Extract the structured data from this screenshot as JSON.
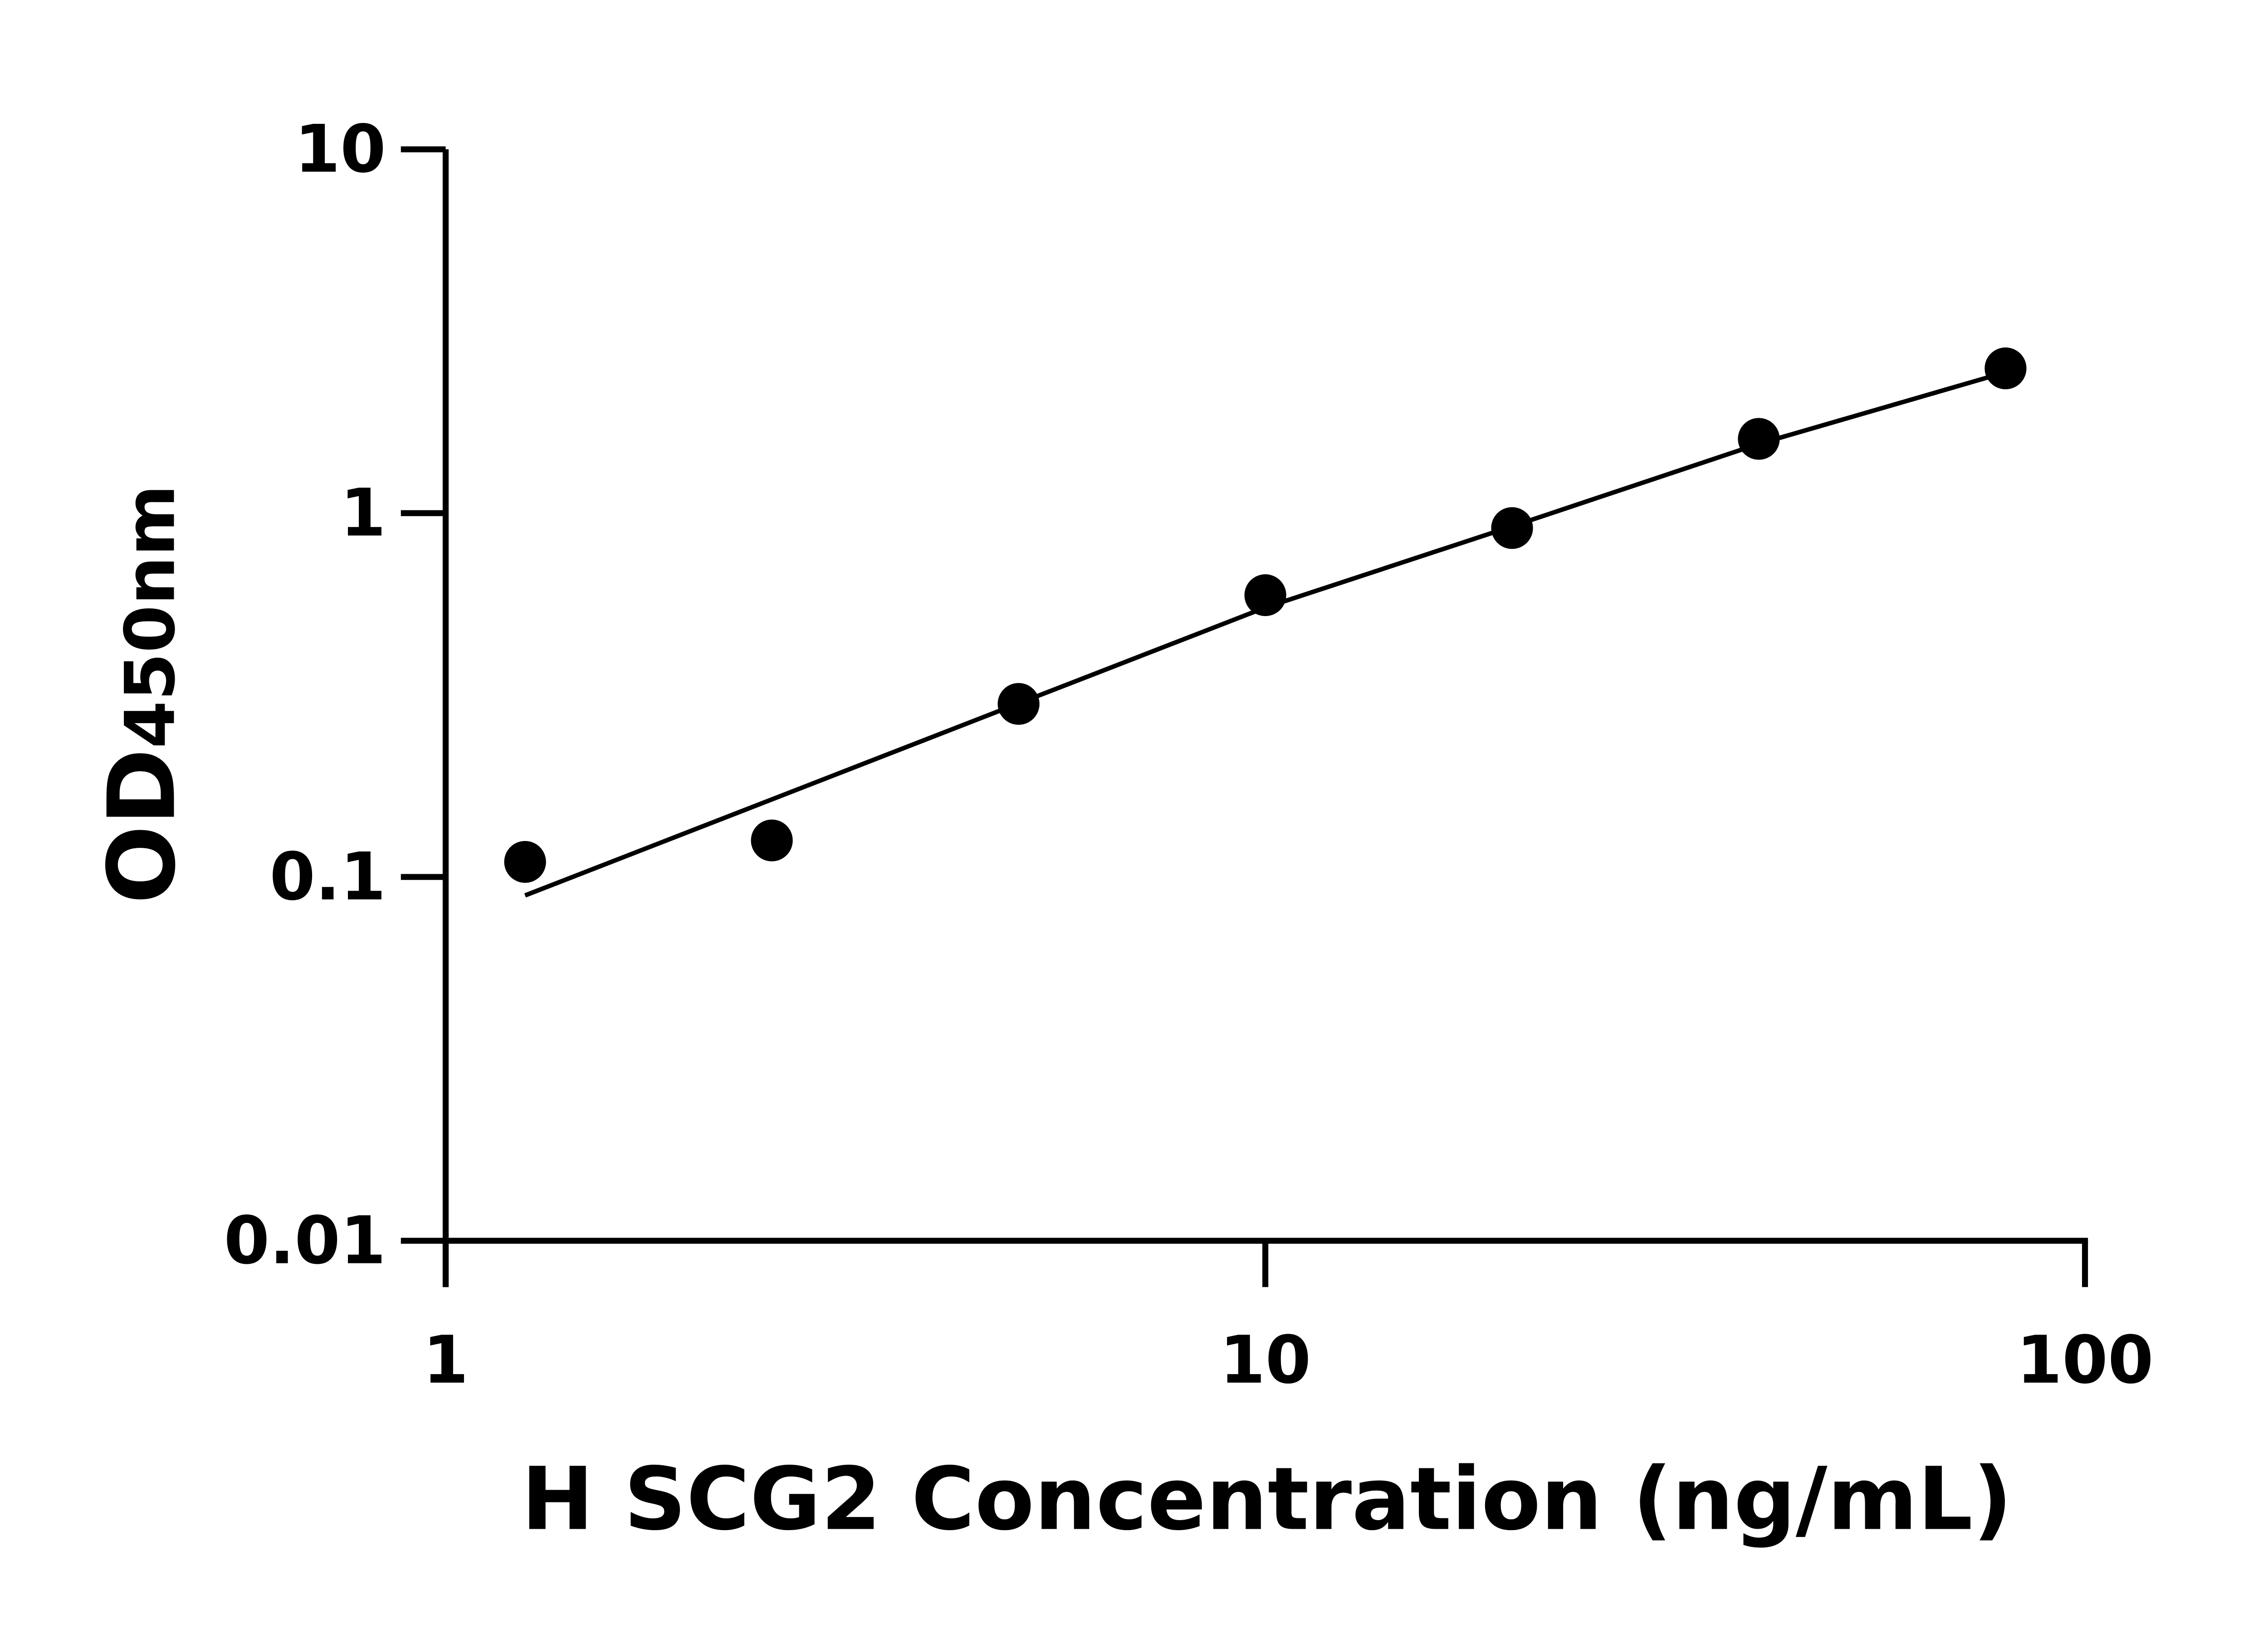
{
  "chart_data": {
    "type": "scatter",
    "xlabel": "H SCG2 Concentration (ng/mL)",
    "ylabel": {
      "main": "OD",
      "subscript": "450nm"
    },
    "x_scale": "log",
    "y_scale": "log",
    "xlim": [
      1,
      100
    ],
    "ylim": [
      0.01,
      10
    ],
    "x_ticks": [
      "1",
      "10",
      "100"
    ],
    "y_ticks": [
      "0.01",
      "0.1",
      "1",
      "10"
    ],
    "grid": false,
    "points": {
      "x": [
        1.25,
        2.5,
        5,
        10,
        20,
        40,
        80
      ],
      "y": [
        0.11,
        0.126,
        0.299,
        0.595,
        0.91,
        1.6,
        2.5
      ]
    },
    "fit_curve": {
      "x": [
        1.25,
        5,
        10,
        20,
        40,
        80
      ],
      "y": [
        0.089,
        0.3,
        0.55,
        0.92,
        1.55,
        2.44
      ]
    },
    "colors": {
      "marker": "#000000",
      "line": "#000000"
    }
  }
}
